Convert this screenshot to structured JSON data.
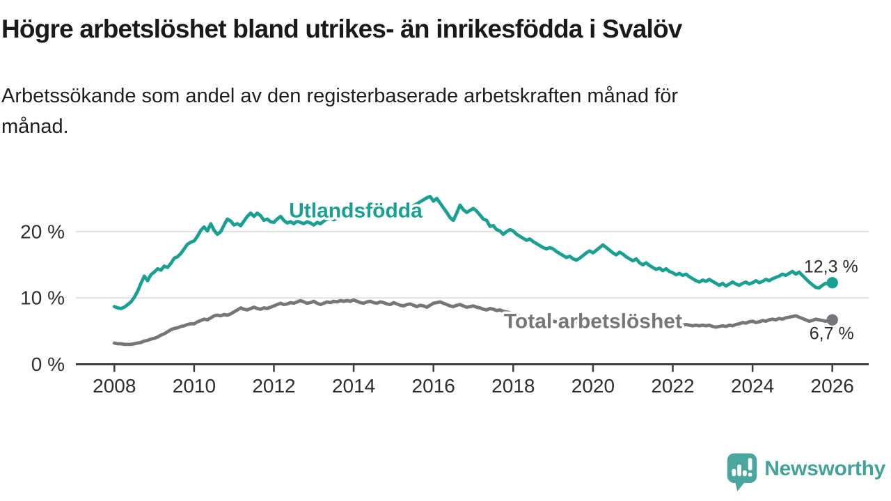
{
  "chart_data": {
    "type": "line",
    "title": "Högre arbetslöshet bland utrikes- än inrikesfödda i Svalöv",
    "subtitle": "Arbetssökande som andel av den registerbaserade arbetskraften månad för månad.",
    "frequency": "monthly",
    "x_start_year": 2008,
    "x_end_year": 2026,
    "x_ticks": [
      2008,
      2010,
      2012,
      2014,
      2016,
      2018,
      2020,
      2022,
      2024,
      2026
    ],
    "y_ticks": [
      0,
      10,
      20
    ],
    "y_tick_suffix": " %",
    "ylim": [
      0,
      27
    ],
    "grid": "horizontal",
    "series": [
      {
        "name": "Utlandsfödda",
        "color": "#1aa093",
        "label": {
          "year": 2014.05,
          "value": 23.2
        },
        "end_label": {
          "text": "12,3 %",
          "dx": 37,
          "dy": -15
        },
        "end_value": 12.3,
        "values": [
          8.7,
          8.5,
          8.4,
          8.6,
          9.0,
          9.4,
          10.1,
          11.0,
          12.2,
          13.3,
          12.6,
          13.5,
          13.9,
          14.4,
          14.2,
          14.8,
          14.6,
          15.2,
          16.0,
          16.2,
          16.7,
          17.4,
          18.1,
          18.4,
          18.6,
          19.3,
          20.2,
          20.7,
          20.1,
          21.2,
          20.2,
          19.6,
          20.0,
          21.0,
          21.9,
          21.6,
          21.0,
          21.2,
          20.9,
          21.6,
          22.3,
          22.8,
          22.3,
          22.8,
          22.4,
          21.7,
          21.9,
          21.5,
          21.4,
          21.9,
          22.3,
          21.7,
          21.3,
          21.5,
          21.2,
          21.6,
          21.4,
          21.2,
          21.5,
          21.3,
          21.0,
          21.4,
          21.2,
          21.6,
          21.9,
          22.1,
          21.8,
          22.0,
          22.3,
          22.1,
          22.4,
          22.2,
          22.5,
          22.3,
          22.6,
          22.4,
          22.7,
          22.5,
          22.8,
          22.6,
          22.9,
          23.1,
          22.8,
          23.0,
          23.2,
          23.0,
          23.3,
          23.1,
          23.4,
          23.6,
          23.9,
          24.2,
          24.5,
          24.8,
          25.1,
          25.3,
          24.6,
          25.0,
          24.3,
          23.6,
          22.9,
          22.1,
          21.7,
          22.8,
          24.0,
          23.3,
          22.9,
          23.2,
          23.5,
          23.1,
          22.5,
          21.9,
          21.7,
          20.8,
          20.9,
          20.3,
          20.1,
          19.6,
          20.0,
          20.3,
          20.1,
          19.6,
          19.3,
          19.0,
          18.7,
          18.9,
          18.5,
          18.2,
          17.9,
          17.6,
          17.4,
          17.6,
          17.4,
          17.0,
          16.7,
          16.4,
          16.1,
          16.3,
          15.9,
          15.7,
          16.0,
          16.4,
          16.8,
          17.1,
          16.8,
          17.2,
          17.6,
          18.0,
          17.6,
          17.2,
          16.8,
          16.5,
          16.9,
          16.6,
          16.2,
          15.9,
          15.6,
          15.9,
          15.3,
          15.0,
          15.3,
          14.9,
          14.6,
          14.3,
          14.5,
          14.1,
          14.4,
          14.0,
          13.8,
          13.5,
          13.7,
          13.4,
          13.6,
          13.2,
          12.9,
          12.6,
          12.4,
          12.7,
          12.5,
          12.8,
          12.5,
          12.2,
          11.9,
          12.2,
          11.8,
          12.1,
          12.4,
          12.1,
          11.9,
          12.2,
          12.4,
          12.1,
          12.3,
          12.6,
          12.3,
          12.5,
          12.8,
          12.6,
          12.9,
          13.1,
          13.3,
          13.6,
          13.4,
          13.7,
          14.0,
          13.6,
          13.9,
          13.4,
          12.9,
          12.4,
          12.0,
          11.6,
          11.5,
          11.9,
          12.2,
          12.1,
          12.3
        ]
      },
      {
        "name": "Total arbetslöshet",
        "color": "#76767a",
        "label": {
          "year": 2020.0,
          "value": 6.5
        },
        "end_label": {
          "text": "6,7 %",
          "dx": 31,
          "dy": 28
        },
        "end_value": 6.7,
        "values": [
          3.2,
          3.1,
          3.1,
          3.0,
          3.0,
          3.0,
          3.1,
          3.2,
          3.3,
          3.5,
          3.6,
          3.8,
          3.9,
          4.1,
          4.4,
          4.6,
          4.9,
          5.2,
          5.4,
          5.5,
          5.7,
          5.8,
          6.0,
          6.1,
          6.1,
          6.4,
          6.6,
          6.8,
          6.7,
          7.0,
          7.3,
          7.4,
          7.3,
          7.5,
          7.4,
          7.6,
          7.9,
          8.2,
          8.5,
          8.3,
          8.2,
          8.4,
          8.6,
          8.4,
          8.3,
          8.5,
          8.4,
          8.6,
          8.8,
          9.0,
          9.2,
          9.0,
          9.1,
          9.3,
          9.2,
          9.4,
          9.6,
          9.4,
          9.2,
          9.3,
          9.5,
          9.2,
          9.0,
          9.2,
          9.4,
          9.3,
          9.5,
          9.4,
          9.6,
          9.5,
          9.6,
          9.5,
          9.7,
          9.5,
          9.3,
          9.2,
          9.4,
          9.5,
          9.3,
          9.2,
          9.4,
          9.3,
          9.1,
          9.0,
          9.3,
          9.1,
          8.9,
          8.8,
          9.0,
          9.1,
          8.9,
          8.7,
          8.9,
          8.8,
          8.6,
          8.9,
          9.2,
          9.3,
          9.4,
          9.2,
          9.0,
          8.8,
          8.7,
          8.9,
          9.0,
          8.8,
          8.6,
          8.7,
          8.8,
          8.6,
          8.5,
          8.3,
          8.2,
          8.4,
          8.3,
          8.1,
          8.2,
          8.0,
          7.9,
          7.8,
          7.6,
          7.4,
          7.2,
          7.1,
          7.0,
          7.1,
          6.9,
          6.8,
          6.7,
          6.6,
          6.6,
          6.5,
          6.5,
          6.4,
          6.4,
          6.3,
          6.3,
          6.2,
          6.3,
          6.4,
          6.3,
          6.4,
          6.5,
          6.6,
          6.6,
          6.7,
          6.9,
          7.1,
          7.0,
          7.1,
          6.9,
          6.8,
          6.9,
          6.7,
          6.6,
          6.5,
          6.5,
          6.4,
          6.3,
          6.2,
          6.3,
          6.2,
          6.1,
          6.2,
          6.1,
          6.0,
          6.1,
          6.0,
          6.0,
          5.9,
          6.0,
          5.9,
          6.0,
          5.9,
          5.8,
          5.9,
          5.8,
          5.9,
          5.8,
          5.9,
          5.7,
          5.6,
          5.7,
          5.8,
          5.7,
          5.9,
          5.8,
          6.0,
          6.1,
          6.3,
          6.2,
          6.4,
          6.5,
          6.3,
          6.4,
          6.6,
          6.5,
          6.7,
          6.8,
          6.7,
          6.9,
          6.8,
          7.0,
          7.1,
          7.2,
          7.3,
          7.1,
          6.9,
          6.7,
          6.5,
          6.6,
          6.8,
          6.7,
          6.6,
          6.5,
          6.6,
          6.7
        ]
      }
    ]
  },
  "branding": {
    "logo_text": "Newsworthy",
    "logo_color": "#45a29b",
    "logo_icon": "bar-chart-speech-bubble-icon"
  },
  "style": {
    "axis_color": "#3d3d3d",
    "tick_label_color": "#2e2e2e",
    "gridline_color": "#dadada",
    "end_label_color": "#2b2b2b"
  }
}
